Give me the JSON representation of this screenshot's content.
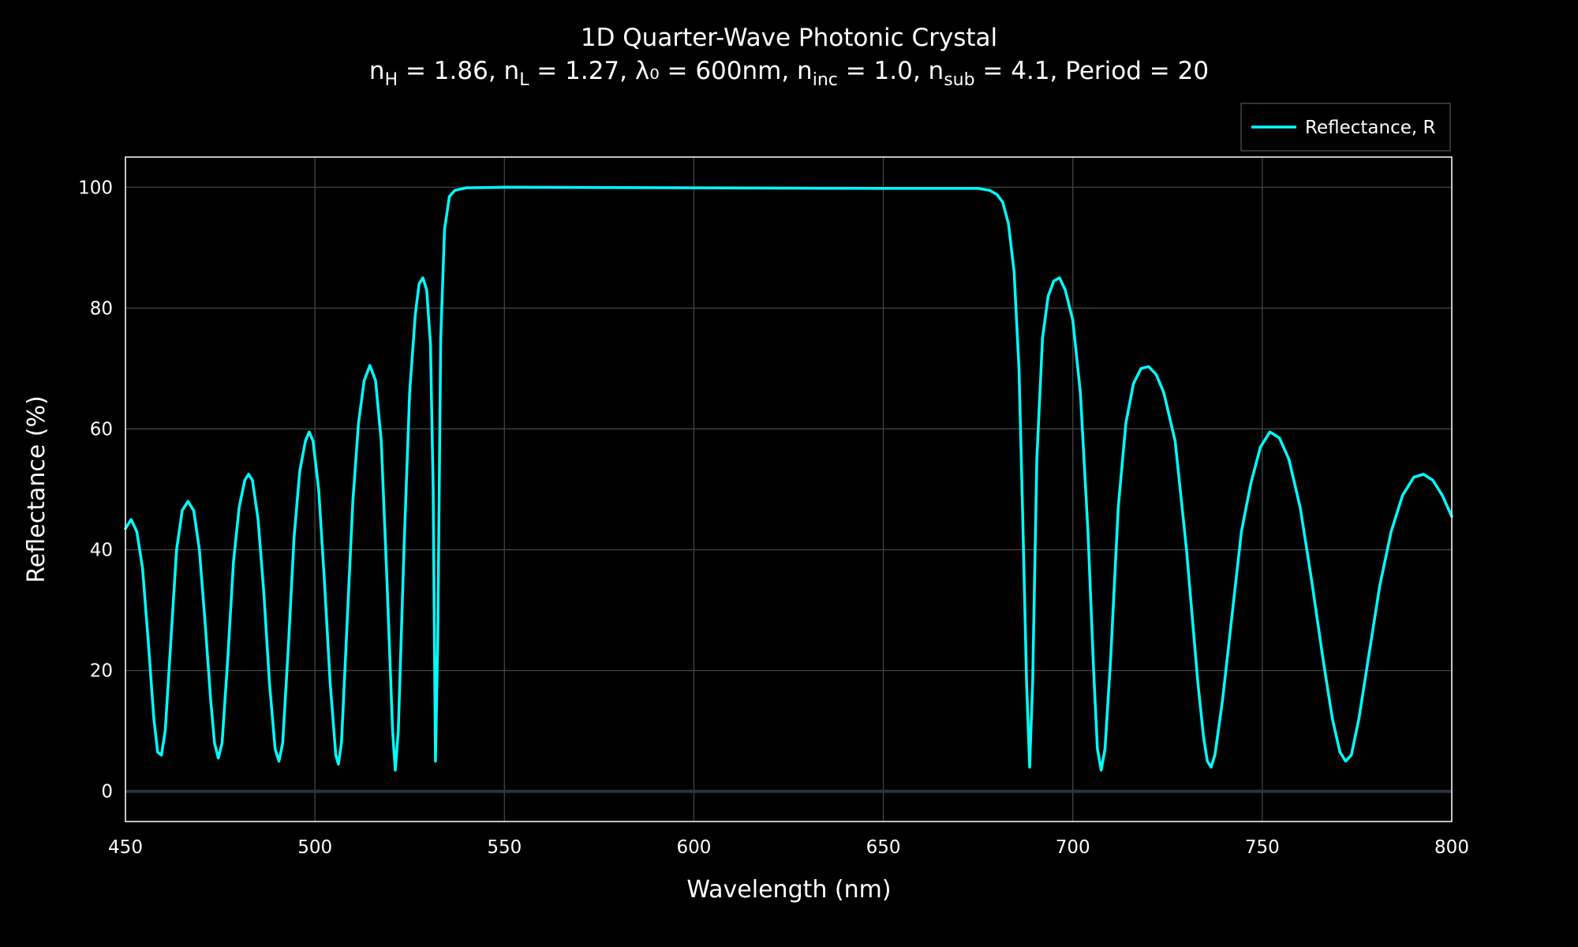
{
  "chart_data": {
    "type": "line",
    "title": "1D Quarter-Wave Photonic Crystal",
    "subtitle_parts": [
      {
        "t": "n",
        "sub": false
      },
      {
        "t": "H",
        "sub": true
      },
      {
        "t": " = 1.86, n",
        "sub": false
      },
      {
        "t": "L",
        "sub": true
      },
      {
        "t": " = 1.27, λ₀ = 600nm, n",
        "sub": false
      },
      {
        "t": "inc",
        "sub": true
      },
      {
        "t": " = 1.0, n",
        "sub": false
      },
      {
        "t": "sub",
        "sub": true
      },
      {
        "t": " = 4.1, Period = 20",
        "sub": false
      }
    ],
    "xlabel": "Wavelength (nm)",
    "ylabel": "Reflectance (%)",
    "xlim": [
      450,
      800
    ],
    "ylim": [
      -5,
      105
    ],
    "xticks": [
      450,
      500,
      550,
      600,
      650,
      700,
      750,
      800
    ],
    "yticks": [
      0,
      20,
      40,
      60,
      80,
      100
    ],
    "grid": true,
    "legend_position": "top-right",
    "colors": {
      "background": "#000000",
      "series": "#00ffff",
      "grid": "#444444",
      "zeroline": "#2c3340",
      "axis": "#ffffff"
    },
    "series": [
      {
        "name": "Reflectance, R",
        "points": [
          [
            450,
            43.5
          ],
          [
            451.5,
            45
          ],
          [
            453,
            43
          ],
          [
            454.5,
            37
          ],
          [
            456,
            25
          ],
          [
            457.5,
            12
          ],
          [
            458.5,
            6.5
          ],
          [
            459.5,
            6
          ],
          [
            460.5,
            10
          ],
          [
            462,
            25
          ],
          [
            463.5,
            40
          ],
          [
            465,
            46.5
          ],
          [
            466.5,
            48
          ],
          [
            468,
            46.5
          ],
          [
            469.5,
            40
          ],
          [
            471,
            28
          ],
          [
            472.5,
            15
          ],
          [
            473.5,
            8
          ],
          [
            474.5,
            5.5
          ],
          [
            475.5,
            8
          ],
          [
            477,
            22
          ],
          [
            478.5,
            38
          ],
          [
            480,
            47
          ],
          [
            481.5,
            51.5
          ],
          [
            482.5,
            52.5
          ],
          [
            483.5,
            51.5
          ],
          [
            485,
            45
          ],
          [
            486.5,
            33
          ],
          [
            488,
            18
          ],
          [
            489.5,
            7
          ],
          [
            490.5,
            5
          ],
          [
            491.5,
            8
          ],
          [
            493,
            24
          ],
          [
            494.5,
            42
          ],
          [
            496,
            53
          ],
          [
            497.5,
            58
          ],
          [
            498.5,
            59.5
          ],
          [
            499.5,
            58
          ],
          [
            501,
            50
          ],
          [
            502.5,
            35
          ],
          [
            504,
            18
          ],
          [
            505.5,
            6
          ],
          [
            506.2,
            4.5
          ],
          [
            507,
            8
          ],
          [
            508.5,
            28
          ],
          [
            510,
            48
          ],
          [
            511.5,
            61
          ],
          [
            513,
            68
          ],
          [
            514.5,
            70.5
          ],
          [
            516,
            68
          ],
          [
            517.5,
            58
          ],
          [
            519,
            35
          ],
          [
            520.5,
            10
          ],
          [
            521.2,
            3.5
          ],
          [
            522,
            10
          ],
          [
            523.5,
            40
          ],
          [
            525,
            66
          ],
          [
            526.5,
            79
          ],
          [
            527.5,
            84
          ],
          [
            528.5,
            85
          ],
          [
            529.5,
            83
          ],
          [
            530.5,
            74
          ],
          [
            531.2,
            50
          ],
          [
            531.8,
            5
          ],
          [
            532.4,
            25
          ],
          [
            533.2,
            75
          ],
          [
            534.2,
            93
          ],
          [
            535.5,
            98.5
          ],
          [
            537,
            99.5
          ],
          [
            540,
            99.9
          ],
          [
            550,
            100
          ],
          [
            600,
            99.9
          ],
          [
            650,
            99.8
          ],
          [
            675,
            99.8
          ],
          [
            678,
            99.5
          ],
          [
            680,
            98.8
          ],
          [
            681.5,
            97.5
          ],
          [
            683,
            94
          ],
          [
            684.5,
            86
          ],
          [
            685.8,
            70
          ],
          [
            686.8,
            45
          ],
          [
            687.8,
            18
          ],
          [
            688.6,
            4
          ],
          [
            689.4,
            18
          ],
          [
            690.5,
            55
          ],
          [
            692,
            75
          ],
          [
            693.5,
            82
          ],
          [
            695,
            84.5
          ],
          [
            696.5,
            85
          ],
          [
            698,
            83
          ],
          [
            700,
            78
          ],
          [
            702,
            66
          ],
          [
            704,
            43
          ],
          [
            705.5,
            20
          ],
          [
            706.5,
            7
          ],
          [
            707.5,
            3.5
          ],
          [
            708.5,
            7
          ],
          [
            710,
            22
          ],
          [
            712,
            47
          ],
          [
            714,
            61
          ],
          [
            716,
            67.5
          ],
          [
            718,
            70
          ],
          [
            720,
            70.3
          ],
          [
            722,
            69
          ],
          [
            724,
            66
          ],
          [
            727,
            58
          ],
          [
            730,
            40
          ],
          [
            733,
            18
          ],
          [
            734.5,
            9
          ],
          [
            735.5,
            5
          ],
          [
            736.5,
            4
          ],
          [
            737.5,
            6
          ],
          [
            739.5,
            15
          ],
          [
            742,
            29
          ],
          [
            744.5,
            43
          ],
          [
            747,
            51
          ],
          [
            749.5,
            57
          ],
          [
            752,
            59.5
          ],
          [
            754.5,
            58.5
          ],
          [
            757,
            55
          ],
          [
            760,
            47
          ],
          [
            763,
            35
          ],
          [
            766,
            22
          ],
          [
            768.5,
            12
          ],
          [
            770.5,
            6.5
          ],
          [
            772,
            5
          ],
          [
            773.5,
            6
          ],
          [
            775.5,
            12
          ],
          [
            778,
            22
          ],
          [
            781,
            34
          ],
          [
            784,
            43
          ],
          [
            787,
            49
          ],
          [
            790,
            52
          ],
          [
            792.5,
            52.5
          ],
          [
            795,
            51.5
          ],
          [
            797.5,
            49
          ],
          [
            800,
            45.5
          ]
        ]
      }
    ]
  }
}
